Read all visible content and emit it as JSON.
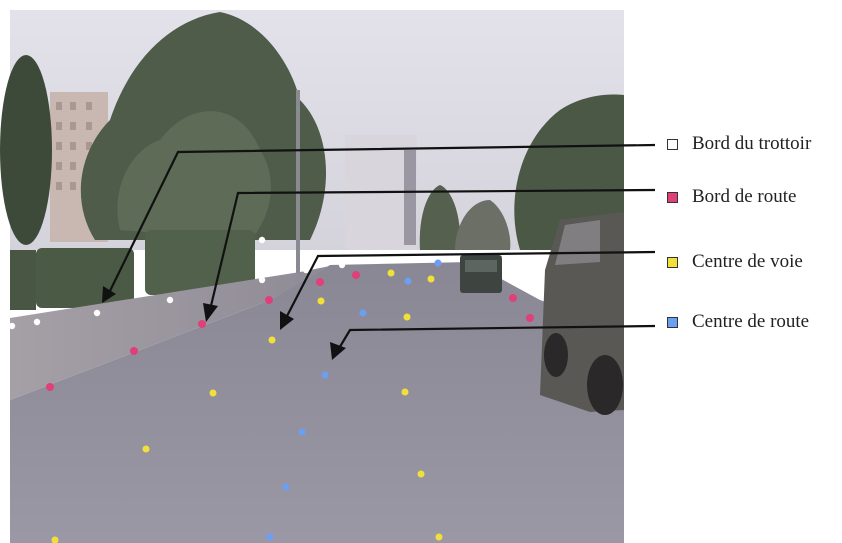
{
  "legend": [
    {
      "label": "Bord du trottoir",
      "color": "#ffffff"
    },
    {
      "label": "Bord de route",
      "color": "#e0407a"
    },
    {
      "label": "Centre de voie",
      "color": "#f2e03a"
    },
    {
      "label": "Centre de route",
      "color": "#6b9ff2"
    }
  ],
  "colors": {
    "sidewalk_edge": "#ffffff",
    "road_edge": "#e0407a",
    "lane_center": "#f2e03a",
    "road_center": "#6b9ff2",
    "arrow": "#111111"
  }
}
